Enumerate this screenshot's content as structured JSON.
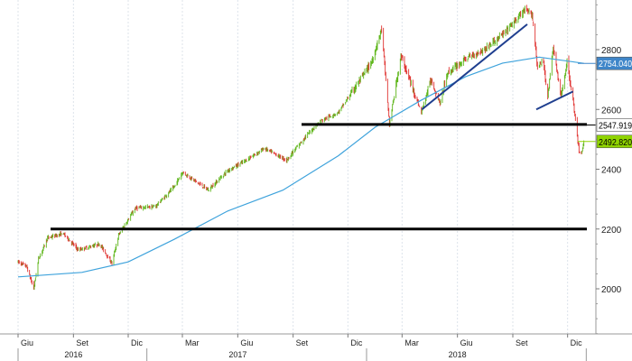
{
  "chart_data": {
    "type": "candlestick",
    "title": "",
    "xlabel": "",
    "ylabel": "",
    "ylim": [
      1840,
      2950
    ],
    "xlim": [
      "2016-06-01",
      "2019-01-02"
    ],
    "y_ticks": [
      2000,
      2200,
      2400,
      2600,
      2800
    ],
    "y_axis_side": "right",
    "grid": "vertical",
    "month_ticks": [
      {
        "label": "Giu",
        "date": "2016-06-01"
      },
      {
        "label": "Set",
        "date": "2016-09-01"
      },
      {
        "label": "Dic",
        "date": "2016-12-01"
      },
      {
        "label": "Mar",
        "date": "2017-03-01"
      },
      {
        "label": "Giu",
        "date": "2017-06-01"
      },
      {
        "label": "Set",
        "date": "2017-09-01"
      },
      {
        "label": "Dic",
        "date": "2017-12-01"
      },
      {
        "label": "Mar",
        "date": "2018-03-01"
      },
      {
        "label": "Giu",
        "date": "2018-06-01"
      },
      {
        "label": "Set",
        "date": "2018-09-01"
      },
      {
        "label": "Dic",
        "date": "2018-12-01"
      }
    ],
    "year_labels": [
      {
        "label": "2016",
        "date": "2016-09-01"
      },
      {
        "label": "2017",
        "date": "2017-06-01"
      },
      {
        "label": "2018",
        "date": "2018-06-01"
      }
    ],
    "price_path": [
      [
        "2016-06-01",
        2090
      ],
      [
        "2016-06-15",
        2075
      ],
      [
        "2016-06-27",
        2000
      ],
      [
        "2016-07-05",
        2100
      ],
      [
        "2016-07-20",
        2170
      ],
      [
        "2016-08-15",
        2185
      ],
      [
        "2016-09-09",
        2130
      ],
      [
        "2016-10-15",
        2150
      ],
      [
        "2016-11-04",
        2085
      ],
      [
        "2016-11-15",
        2180
      ],
      [
        "2016-12-13",
        2270
      ],
      [
        "2017-01-15",
        2275
      ],
      [
        "2017-02-15",
        2340
      ],
      [
        "2017-03-01",
        2390
      ],
      [
        "2017-04-13",
        2330
      ],
      [
        "2017-05-15",
        2395
      ],
      [
        "2017-06-15",
        2430
      ],
      [
        "2017-07-15",
        2470
      ],
      [
        "2017-08-21",
        2430
      ],
      [
        "2017-09-20",
        2505
      ],
      [
        "2017-10-15",
        2560
      ],
      [
        "2017-11-15",
        2590
      ],
      [
        "2017-12-15",
        2680
      ],
      [
        "2018-01-10",
        2760
      ],
      [
        "2018-01-26",
        2870
      ],
      [
        "2018-02-08",
        2550
      ],
      [
        "2018-02-27",
        2780
      ],
      [
        "2018-03-15",
        2690
      ],
      [
        "2018-04-02",
        2590
      ],
      [
        "2018-04-18",
        2700
      ],
      [
        "2018-05-03",
        2620
      ],
      [
        "2018-05-15",
        2720
      ],
      [
        "2018-06-15",
        2770
      ],
      [
        "2018-07-15",
        2800
      ],
      [
        "2018-08-15",
        2850
      ],
      [
        "2018-09-20",
        2930
      ],
      [
        "2018-10-03",
        2920
      ],
      [
        "2018-10-12",
        2740
      ],
      [
        "2018-10-22",
        2760
      ],
      [
        "2018-10-29",
        2640
      ],
      [
        "2018-11-07",
        2810
      ],
      [
        "2018-11-20",
        2640
      ],
      [
        "2018-11-30",
        2760
      ],
      [
        "2018-12-10",
        2630
      ],
      [
        "2018-12-20",
        2460
      ],
      [
        "2018-12-24",
        2450
      ],
      [
        "2018-12-28",
        2492
      ]
    ],
    "series": [
      {
        "name": "",
        "type": "line",
        "color": "#3fa3dc",
        "path": [
          [
            "2016-06-01",
            2040
          ],
          [
            "2016-09-15",
            2055
          ],
          [
            "2016-12-01",
            2090
          ],
          [
            "2017-02-15",
            2165
          ],
          [
            "2017-05-15",
            2260
          ],
          [
            "2017-08-15",
            2330
          ],
          [
            "2017-11-15",
            2445
          ],
          [
            "2018-01-15",
            2540
          ],
          [
            "2018-04-01",
            2630
          ],
          [
            "2018-06-15",
            2710
          ],
          [
            "2018-08-15",
            2755
          ],
          [
            "2018-10-15",
            2775
          ],
          [
            "2018-12-28",
            2754
          ]
        ]
      }
    ],
    "levels": [
      {
        "value": 2754.0405,
        "label": "2754.0405",
        "bg": "#3f86c9",
        "fg": "#ffffff"
      },
      {
        "value": 2547.9199,
        "label": "2547.9199",
        "bg": "#ffffff",
        "fg": "#000000"
      },
      {
        "value": 2492.8201,
        "label": "2492.8201",
        "bg": "#8fd400",
        "fg": "#000000"
      }
    ],
    "drawn_lines": [
      {
        "kind": "horizontal",
        "value": 2200,
        "from": "2016-07-25",
        "to": "2019-01-02",
        "color": "#000000"
      },
      {
        "kind": "horizontal",
        "value": 2550,
        "from": "2017-09-15",
        "to": "2019-01-02",
        "color": "#000000"
      },
      {
        "kind": "trend",
        "from": [
          "2018-04-03",
          2600
        ],
        "to": [
          "2018-09-25",
          2885
        ],
        "color": "#1f3f8f"
      },
      {
        "kind": "trend",
        "from": [
          "2018-10-10",
          2600
        ],
        "to": [
          "2018-12-10",
          2660
        ],
        "color": "#1f3f8f"
      }
    ],
    "candle_colors": {
      "up": "#5cb518",
      "down": "#e0322f"
    }
  }
}
